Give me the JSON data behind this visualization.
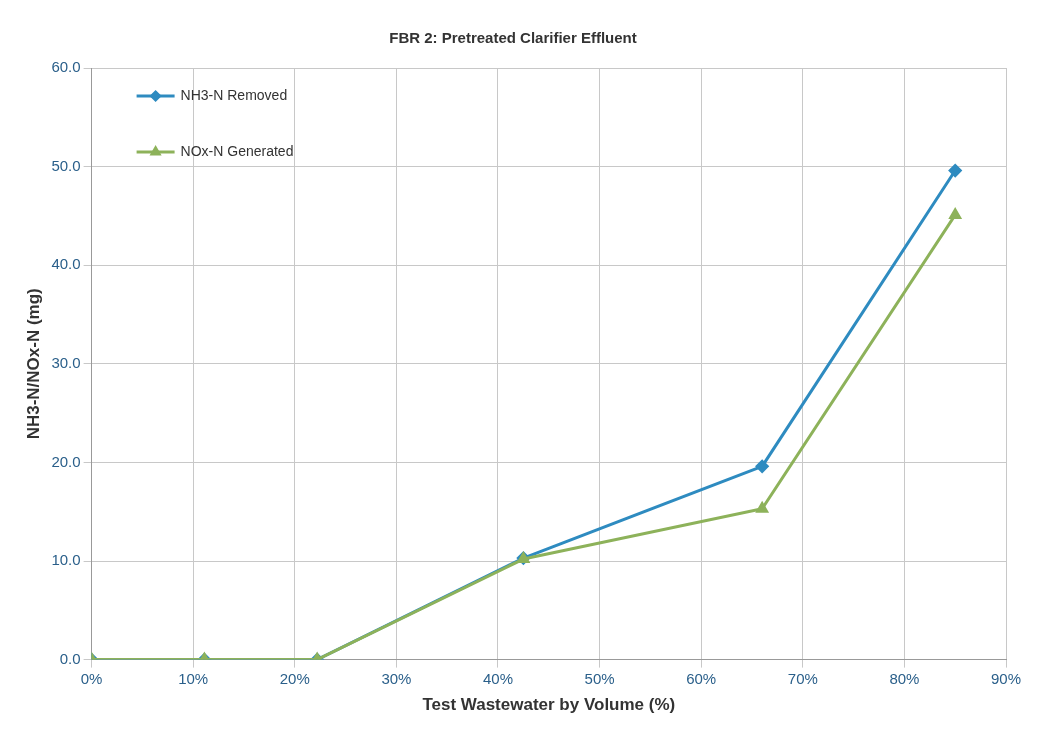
{
  "chart_data": {
    "type": "line",
    "title": "FBR 2: Pretreated Clarifier Effluent",
    "xlabel": "Test Wastewater by Volume (%)",
    "ylabel": "NH3-N/NOx-N (mg)",
    "x": [
      0,
      11.1,
      22.2,
      42.5,
      66,
      85
    ],
    "series": [
      {
        "name": "NH3-N Removed",
        "color": "#2e8bc0",
        "marker": "diamond",
        "values": [
          0,
          0,
          0,
          10.3,
          19.6,
          49.6
        ]
      },
      {
        "name": "NOx-N Generated",
        "color": "#8db25a",
        "marker": "triangle",
        "values": [
          0,
          0,
          0,
          10.2,
          15.3,
          45.1
        ]
      }
    ],
    "xlim": [
      0,
      90
    ],
    "xticks": [
      {
        "value": 0,
        "label": "0%"
      },
      {
        "value": 10,
        "label": "10%"
      },
      {
        "value": 20,
        "label": "20%"
      },
      {
        "value": 30,
        "label": "30%"
      },
      {
        "value": 40,
        "label": "40%"
      },
      {
        "value": 50,
        "label": "50%"
      },
      {
        "value": 60,
        "label": "60%"
      },
      {
        "value": 70,
        "label": "70%"
      },
      {
        "value": 80,
        "label": "80%"
      },
      {
        "value": 90,
        "label": "90%"
      }
    ],
    "ylim": [
      0,
      60
    ],
    "yticks": [
      {
        "value": 0,
        "label": "0.0"
      },
      {
        "value": 10,
        "label": "10.0"
      },
      {
        "value": 20,
        "label": "20.0"
      },
      {
        "value": 30,
        "label": "30.0"
      },
      {
        "value": 40,
        "label": "40.0"
      },
      {
        "value": 50,
        "label": "50.0"
      },
      {
        "value": 60,
        "label": "60.0"
      }
    ],
    "grid": true,
    "legend": "top left",
    "line_style": "solid"
  }
}
